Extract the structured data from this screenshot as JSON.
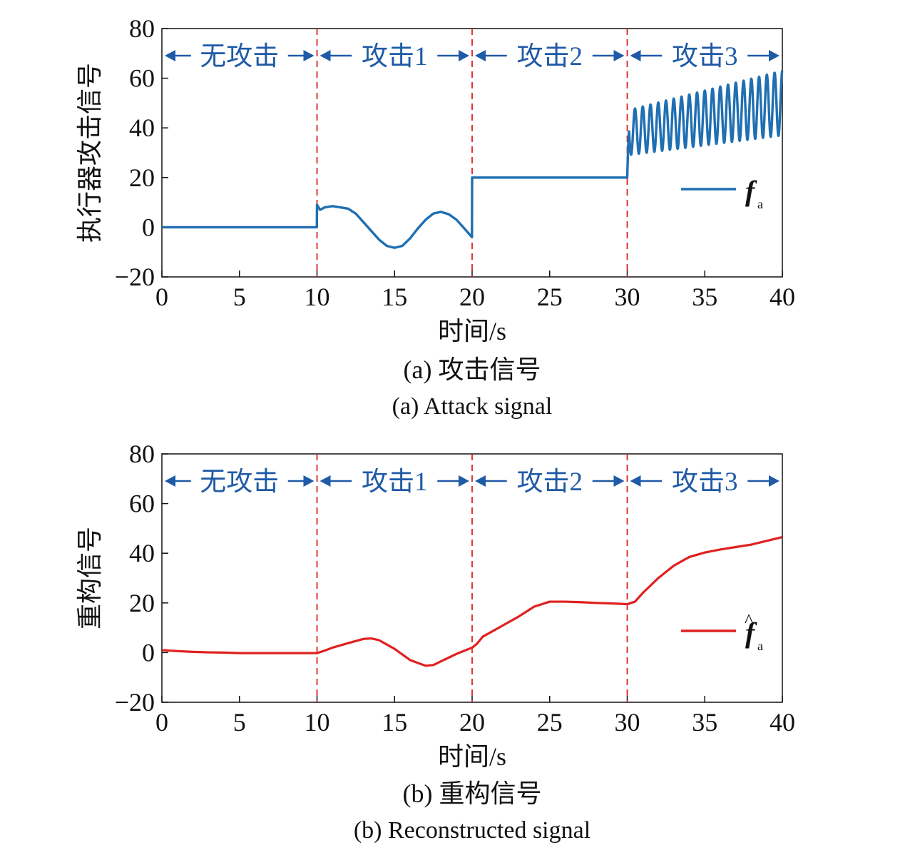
{
  "colors": {
    "attack_series": "#1f6fb2",
    "reconstructed_series": "#e02020",
    "boundary_line": "#e02020",
    "region_annotation": "#1f5aa6",
    "axis": "#111111"
  },
  "panels": [
    {
      "caption_cn": "(a) 攻击信号",
      "caption_en": "(a) Attack signal",
      "legend_symbol": "f",
      "legend_subscript": "a",
      "legend_hat": false
    },
    {
      "caption_cn": "(b) 重构信号",
      "caption_en": "(b) Reconstructed signal",
      "legend_symbol": "f",
      "legend_subscript": "a",
      "legend_hat": true
    }
  ],
  "chart_data": [
    {
      "type": "line",
      "xlabel": "时间/s",
      "ylabel": "执行器攻击信号",
      "xlim": [
        0,
        40
      ],
      "ylim": [
        -20,
        80
      ],
      "xticks": [
        0,
        5,
        10,
        15,
        20,
        25,
        30,
        35,
        40
      ],
      "yticks": [
        -20,
        0,
        20,
        40,
        60,
        80
      ],
      "xtick_labels": [
        "0",
        "5",
        "10",
        "15",
        "20",
        "25",
        "30",
        "35",
        "40"
      ],
      "ytick_labels": [
        "−20",
        "0",
        "20",
        "40",
        "60",
        "80"
      ],
      "grid": false,
      "legend_position": "right",
      "boundaries": [
        10,
        20,
        30
      ],
      "regions": [
        {
          "label": "无攻击",
          "from": 0,
          "to": 10
        },
        {
          "label": "攻击1",
          "from": 10,
          "to": 20
        },
        {
          "label": "攻击2",
          "from": 20,
          "to": 30
        },
        {
          "label": "攻击3",
          "from": 30,
          "to": 40
        }
      ],
      "series": [
        {
          "name": "f_a",
          "segments": [
            {
              "x": [
                0,
                9.99
              ],
              "y": [
                0,
                0
              ]
            },
            {
              "x": [
                10,
                10.2,
                10.5,
                11,
                11.5,
                12,
                12.5,
                13,
                13.5,
                14,
                14.5,
                15,
                15.5,
                16,
                16.5,
                17,
                17.5,
                18,
                18.5,
                19,
                19.5,
                19.99
              ],
              "y": [
                9,
                7,
                8,
                8.5,
                8,
                7.5,
                5.5,
                2,
                -1.5,
                -5,
                -7.5,
                -8.3,
                -7.5,
                -4.5,
                -0.5,
                3,
                5.5,
                6.2,
                5.2,
                3,
                -0.5,
                -4
              ]
            },
            {
              "x": [
                20,
                29.99
              ],
              "y": [
                20,
                20
              ]
            },
            {
              "oscillation": {
                "start": 30,
                "end": 40,
                "mean_start": 38,
                "mean_end": 50,
                "amp_start": 9,
                "amp_end": 13,
                "period": 0.5
              }
            }
          ]
        }
      ]
    },
    {
      "type": "line",
      "xlabel": "时间/s",
      "ylabel": "重构信号",
      "xlim": [
        0,
        40
      ],
      "ylim": [
        -20,
        80
      ],
      "xticks": [
        0,
        5,
        10,
        15,
        20,
        25,
        30,
        35,
        40
      ],
      "yticks": [
        -20,
        0,
        20,
        40,
        60,
        80
      ],
      "xtick_labels": [
        "0",
        "5",
        "10",
        "15",
        "20",
        "25",
        "30",
        "35",
        "40"
      ],
      "ytick_labels": [
        "−20",
        "0",
        "20",
        "40",
        "60",
        "80"
      ],
      "grid": false,
      "legend_position": "right",
      "boundaries": [
        10,
        20,
        30
      ],
      "regions": [
        {
          "label": "无攻击",
          "from": 0,
          "to": 10
        },
        {
          "label": "攻击1",
          "from": 10,
          "to": 20
        },
        {
          "label": "攻击2",
          "from": 20,
          "to": 30
        },
        {
          "label": "攻击3",
          "from": 30,
          "to": 40
        }
      ],
      "series": [
        {
          "name": "f̂_a",
          "segments": [
            {
              "x": [
                0,
                1,
                2,
                3,
                4,
                5,
                6,
                7,
                8,
                9,
                10,
                10.5,
                11,
                12,
                13,
                13.5,
                14,
                15,
                16,
                17,
                17.5,
                18,
                19,
                20,
                20.3,
                20.7,
                21,
                22,
                23,
                24,
                25,
                26,
                27,
                28,
                29,
                30,
                30.5,
                31,
                32,
                33,
                34,
                35,
                36,
                37,
                38,
                39,
                40
              ],
              "y": [
                1,
                0.6,
                0.3,
                0.1,
                0,
                -0.2,
                -0.2,
                -0.2,
                -0.2,
                -0.2,
                -0.2,
                0.8,
                2,
                3.8,
                5.5,
                5.7,
                5,
                1.5,
                -3,
                -5.3,
                -5,
                -3.5,
                -0.5,
                2,
                3.5,
                6.5,
                7.5,
                11,
                14.5,
                18.5,
                20.5,
                20.5,
                20.3,
                20,
                19.8,
                19.5,
                20.5,
                24,
                30,
                35,
                38.5,
                40.3,
                41.5,
                42.5,
                43.5,
                45,
                46.5
              ]
            }
          ]
        }
      ]
    }
  ]
}
